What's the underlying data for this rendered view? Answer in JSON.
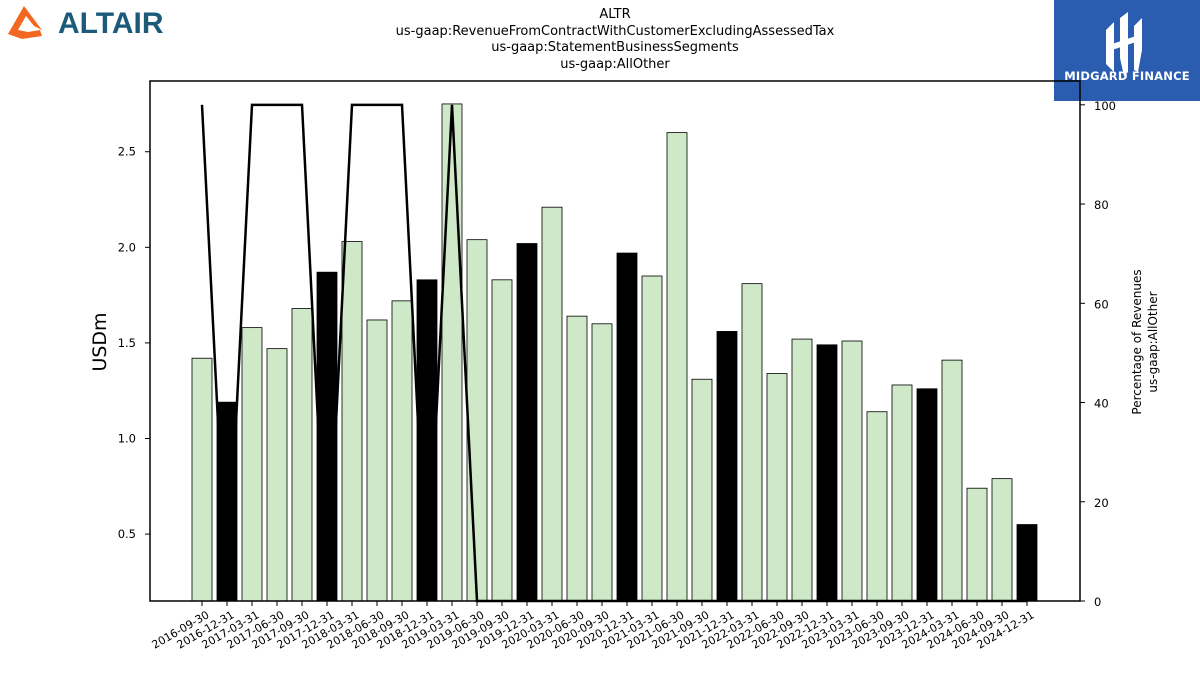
{
  "header": {
    "left_logo_text": "ALTAIR",
    "right_logo_text": "MIDGARD FINANCE"
  },
  "chart_data": {
    "type": "bar",
    "title_lines": [
      "ALTR",
      "us-gaap:RevenueFromContractWithCustomerExcludingAssessedTax",
      "us-gaap:StatementBusinessSegments",
      "us-gaap:AllOther"
    ],
    "ylabel": "USDm",
    "y2label_lines": [
      "Percentage of Revenues",
      "us-gaap:AllOther"
    ],
    "ylim": [
      0.15,
      2.87
    ],
    "y2lim": [
      0,
      104.8
    ],
    "yticks": [
      "0.5",
      "1.0",
      "1.5",
      "2.0",
      "2.5"
    ],
    "y2ticks": [
      "0",
      "20",
      "40",
      "60",
      "80",
      "100"
    ],
    "categories": [
      "2016-09-30",
      "2016-12-31",
      "2017-03-31",
      "2017-06-30",
      "2017-09-30",
      "2017-12-31",
      "2018-03-31",
      "2018-06-30",
      "2018-09-30",
      "2018-12-31",
      "2019-03-31",
      "2019-06-30",
      "2019-09-30",
      "2019-12-31",
      "2020-03-31",
      "2020-06-30",
      "2020-09-30",
      "2020-12-31",
      "2021-03-31",
      "2021-06-30",
      "2021-09-30",
      "2021-12-31",
      "2022-03-31",
      "2022-06-30",
      "2022-09-30",
      "2022-12-31",
      "2023-03-31",
      "2023-06-30",
      "2023-09-30",
      "2023-12-31",
      "2024-03-31",
      "2024-06-30",
      "2024-09-30",
      "2024-12-31"
    ],
    "series": [
      {
        "values": [
          1.42,
          1.19,
          1.58,
          1.47,
          1.68,
          1.87,
          2.03,
          1.62,
          1.72,
          1.83,
          2.75,
          2.04,
          1.83,
          2.02,
          2.21,
          1.64,
          1.6,
          1.97,
          1.85,
          2.6,
          1.31,
          1.56,
          1.81,
          1.34,
          1.52,
          1.49,
          1.51,
          1.14,
          1.28,
          1.26,
          1.41,
          0.74,
          0.79,
          0.55
        ],
        "highlight": [
          false,
          true,
          false,
          false,
          false,
          true,
          false,
          false,
          false,
          true,
          false,
          false,
          false,
          true,
          false,
          false,
          false,
          true,
          false,
          false,
          false,
          true,
          false,
          false,
          false,
          true,
          false,
          false,
          false,
          true,
          false,
          false,
          false,
          true
        ]
      },
      {
        "axis": "right",
        "values": [
          100,
          0,
          100,
          100,
          100,
          0,
          100,
          100,
          100,
          0,
          100,
          0,
          0,
          0,
          0,
          0,
          0,
          0,
          0,
          0,
          0,
          0,
          0,
          0,
          0,
          0,
          0,
          0,
          0,
          0,
          0,
          0,
          0,
          0
        ]
      }
    ],
    "colors": {
      "bar": "#cfe9c8",
      "bar_highlight": "#000000",
      "line": "#000000",
      "edge": "#000000"
    },
    "grid": false
  }
}
